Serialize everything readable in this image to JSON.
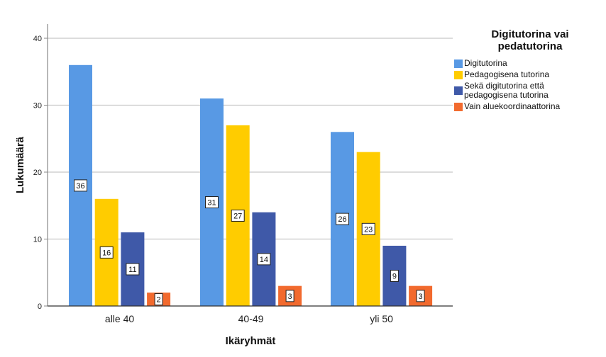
{
  "chart_data": {
    "type": "bar",
    "title": "",
    "xlabel": "Ikäryhmät",
    "ylabel": "Lukumäärä",
    "ylim": [
      0,
      42
    ],
    "yticks": [
      0,
      10,
      20,
      30,
      40
    ],
    "grid": true,
    "legend_position": "right",
    "legend_title": "Digitutorina vai pedatutorina",
    "categories": [
      "alle 40",
      "40-49",
      "yli 50"
    ],
    "series": [
      {
        "name": "Digitutorina",
        "color": "#5899E4",
        "values": [
          36,
          31,
          26
        ]
      },
      {
        "name": "Pedagogisena tutorina",
        "color": "#FFCC00",
        "values": [
          16,
          27,
          23
        ]
      },
      {
        "name": "Sekä digitutorina että pedagogisena tutorina",
        "color": "#3F59A8",
        "values": [
          11,
          14,
          9
        ]
      },
      {
        "name": "Vain aluekoordinaattorina",
        "color": "#F26A2E",
        "values": [
          2,
          3,
          3
        ]
      }
    ]
  },
  "legend": {
    "title_line1": "Digitutorina vai",
    "title_line2": "pedatutorina",
    "items": [
      {
        "label": "Digitutorina"
      },
      {
        "label": "Pedagogisena tutorina"
      },
      {
        "label": "Sekä digitutorina että pedagogisena tutorina"
      },
      {
        "label": "Vain aluekoordinaattorina"
      }
    ]
  }
}
